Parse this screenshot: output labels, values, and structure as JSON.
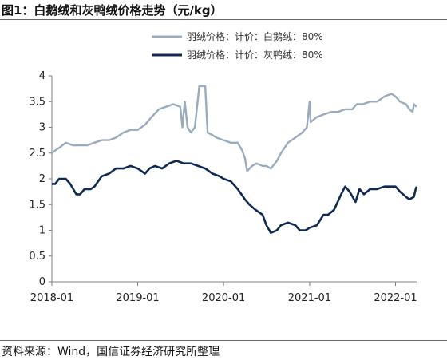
{
  "title": "图1：白鹅绒和灰鸭绒价格走势（元/kg）",
  "source": "资料来源：Wind，国信证券经济研究所整理",
  "colors": {
    "series_1": "#9aabbd",
    "series_2": "#0f2a52",
    "axis": "#7f7f7f"
  },
  "chart_data": {
    "type": "line",
    "title": "",
    "xlabel": "",
    "ylabel": "",
    "x_type": "date",
    "xlim": [
      "2018-01-01",
      "2022-04-01"
    ],
    "ylim": [
      0,
      4
    ],
    "y_ticks": [
      "0",
      "0.5",
      "1",
      "1.5",
      "2",
      "2.5",
      "3",
      "3.5",
      "4"
    ],
    "x_tick_labels": [
      "2018-01",
      "2019-01",
      "2020-01",
      "2021-01",
      "2022-01"
    ],
    "grid": false,
    "legend_position": "top",
    "series": [
      {
        "name": "羽绒价格：计价：白鹅绒：80%",
        "points": [
          [
            "2018-01-01",
            2.5
          ],
          [
            "2018-01-15",
            2.55
          ],
          [
            "2018-02-01",
            2.6
          ],
          [
            "2018-03-01",
            2.7
          ],
          [
            "2018-04-01",
            2.65
          ],
          [
            "2018-05-01",
            2.65
          ],
          [
            "2018-06-01",
            2.65
          ],
          [
            "2018-07-01",
            2.7
          ],
          [
            "2018-08-01",
            2.75
          ],
          [
            "2018-09-01",
            2.75
          ],
          [
            "2018-10-01",
            2.8
          ],
          [
            "2018-11-01",
            2.9
          ],
          [
            "2018-12-01",
            2.95
          ],
          [
            "2019-01-01",
            2.95
          ],
          [
            "2019-02-01",
            3.05
          ],
          [
            "2019-03-01",
            3.2
          ],
          [
            "2019-04-01",
            3.35
          ],
          [
            "2019-05-01",
            3.4
          ],
          [
            "2019-06-01",
            3.45
          ],
          [
            "2019-07-01",
            3.4
          ],
          [
            "2019-07-10",
            3.0
          ],
          [
            "2019-07-20",
            3.5
          ],
          [
            "2019-08-01",
            3.0
          ],
          [
            "2019-08-15",
            2.9
          ],
          [
            "2019-09-01",
            3.0
          ],
          [
            "2019-09-20",
            3.8
          ],
          [
            "2019-10-15",
            3.8
          ],
          [
            "2019-10-25",
            2.9
          ],
          [
            "2019-11-15",
            2.85
          ],
          [
            "2019-12-01",
            2.8
          ],
          [
            "2020-01-01",
            2.75
          ],
          [
            "2020-02-01",
            2.7
          ],
          [
            "2020-03-01",
            2.7
          ],
          [
            "2020-03-20",
            2.55
          ],
          [
            "2020-04-01",
            2.4
          ],
          [
            "2020-04-10",
            2.15
          ],
          [
            "2020-05-01",
            2.25
          ],
          [
            "2020-05-20",
            2.3
          ],
          [
            "2020-06-15",
            2.25
          ],
          [
            "2020-07-01",
            2.25
          ],
          [
            "2020-07-20",
            2.2
          ],
          [
            "2020-08-15",
            2.35
          ],
          [
            "2020-09-01",
            2.5
          ],
          [
            "2020-10-01",
            2.7
          ],
          [
            "2020-11-01",
            2.8
          ],
          [
            "2020-12-01",
            2.9
          ],
          [
            "2020-12-20",
            3.0
          ],
          [
            "2021-01-01",
            3.5
          ],
          [
            "2021-01-05",
            3.1
          ],
          [
            "2021-02-01",
            3.2
          ],
          [
            "2021-03-01",
            3.25
          ],
          [
            "2021-04-01",
            3.3
          ],
          [
            "2021-05-01",
            3.3
          ],
          [
            "2021-06-01",
            3.35
          ],
          [
            "2021-07-01",
            3.35
          ],
          [
            "2021-07-20",
            3.45
          ],
          [
            "2021-08-15",
            3.45
          ],
          [
            "2021-09-15",
            3.5
          ],
          [
            "2021-10-15",
            3.5
          ],
          [
            "2021-11-15",
            3.6
          ],
          [
            "2021-12-15",
            3.65
          ],
          [
            "2022-01-01",
            3.6
          ],
          [
            "2022-01-20",
            3.5
          ],
          [
            "2022-02-15",
            3.45
          ],
          [
            "2022-03-01",
            3.35
          ],
          [
            "2022-03-15",
            3.3
          ],
          [
            "2022-03-20",
            3.45
          ],
          [
            "2022-04-01",
            3.4
          ]
        ]
      },
      {
        "name": "羽绒价格：计价：灰鸭绒：80%",
        "points": [
          [
            "2018-01-01",
            1.9
          ],
          [
            "2018-01-15",
            1.9
          ],
          [
            "2018-02-01",
            2.0
          ],
          [
            "2018-03-01",
            2.0
          ],
          [
            "2018-03-20",
            1.9
          ],
          [
            "2018-04-15",
            1.7
          ],
          [
            "2018-05-01",
            1.7
          ],
          [
            "2018-05-20",
            1.8
          ],
          [
            "2018-06-15",
            1.8
          ],
          [
            "2018-07-01",
            1.85
          ],
          [
            "2018-08-01",
            2.05
          ],
          [
            "2018-09-01",
            2.1
          ],
          [
            "2018-10-01",
            2.2
          ],
          [
            "2018-11-01",
            2.2
          ],
          [
            "2018-12-01",
            2.25
          ],
          [
            "2019-01-01",
            2.2
          ],
          [
            "2019-02-01",
            2.1
          ],
          [
            "2019-02-20",
            2.2
          ],
          [
            "2019-03-15",
            2.25
          ],
          [
            "2019-04-15",
            2.2
          ],
          [
            "2019-05-15",
            2.3
          ],
          [
            "2019-06-15",
            2.35
          ],
          [
            "2019-07-15",
            2.3
          ],
          [
            "2019-08-15",
            2.3
          ],
          [
            "2019-09-15",
            2.25
          ],
          [
            "2019-10-15",
            2.2
          ],
          [
            "2019-11-15",
            2.1
          ],
          [
            "2019-12-15",
            2.05
          ],
          [
            "2020-01-01",
            2.0
          ],
          [
            "2020-02-01",
            1.95
          ],
          [
            "2020-03-01",
            1.8
          ],
          [
            "2020-04-01",
            1.6
          ],
          [
            "2020-04-20",
            1.5
          ],
          [
            "2020-05-15",
            1.4
          ],
          [
            "2020-06-15",
            1.3
          ],
          [
            "2020-07-01",
            1.1
          ],
          [
            "2020-07-20",
            0.95
          ],
          [
            "2020-08-15",
            1.0
          ],
          [
            "2020-09-01",
            1.1
          ],
          [
            "2020-10-01",
            1.15
          ],
          [
            "2020-11-01",
            1.1
          ],
          [
            "2020-11-20",
            1.0
          ],
          [
            "2020-12-15",
            1.0
          ],
          [
            "2021-01-01",
            1.05
          ],
          [
            "2021-02-01",
            1.1
          ],
          [
            "2021-03-01",
            1.3
          ],
          [
            "2021-03-20",
            1.3
          ],
          [
            "2021-04-15",
            1.4
          ],
          [
            "2021-05-15",
            1.7
          ],
          [
            "2021-06-01",
            1.85
          ],
          [
            "2021-06-20",
            1.75
          ],
          [
            "2021-07-15",
            1.55
          ],
          [
            "2021-08-01",
            1.8
          ],
          [
            "2021-08-20",
            1.7
          ],
          [
            "2021-09-15",
            1.8
          ],
          [
            "2021-10-15",
            1.8
          ],
          [
            "2021-11-15",
            1.85
          ],
          [
            "2021-12-15",
            1.85
          ],
          [
            "2022-01-01",
            1.85
          ],
          [
            "2022-01-20",
            1.75
          ],
          [
            "2022-02-15",
            1.65
          ],
          [
            "2022-03-01",
            1.6
          ],
          [
            "2022-03-20",
            1.65
          ],
          [
            "2022-03-28",
            1.8
          ],
          [
            "2022-04-01",
            1.85
          ]
        ]
      }
    ]
  }
}
